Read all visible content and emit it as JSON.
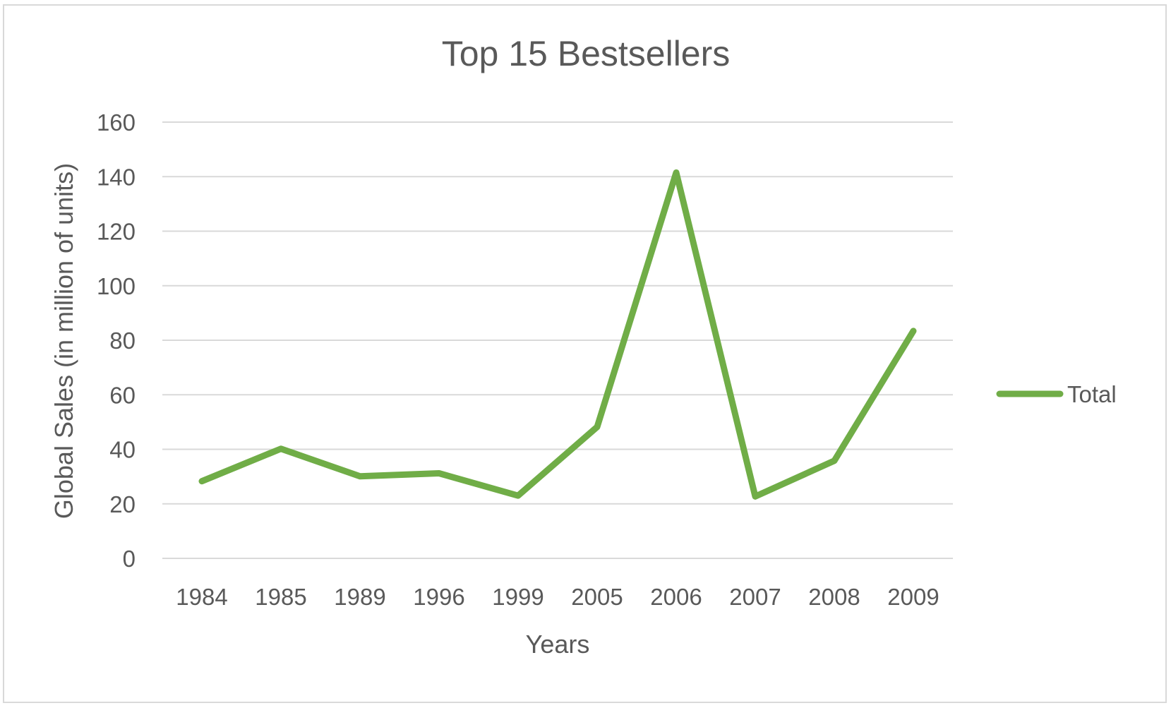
{
  "chart_data": {
    "type": "line",
    "title": "Top 15 Bestsellers",
    "xlabel": "Years",
    "ylabel": "Global Sales (in million of units)",
    "categories": [
      "1984",
      "1985",
      "1989",
      "1996",
      "1999",
      "2005",
      "2006",
      "2007",
      "2008",
      "2009"
    ],
    "series": [
      {
        "name": "Total",
        "values": [
          28.3,
          40.2,
          30.1,
          31.2,
          23.0,
          48.2,
          141.5,
          22.7,
          35.8,
          83.4
        ],
        "color": "#70ad47"
      }
    ],
    "ylim": [
      0,
      160
    ],
    "yticks": [
      "0",
      "20",
      "40",
      "60",
      "80",
      "100",
      "120",
      "140",
      "160"
    ],
    "grid": true,
    "legend_position": "right"
  }
}
